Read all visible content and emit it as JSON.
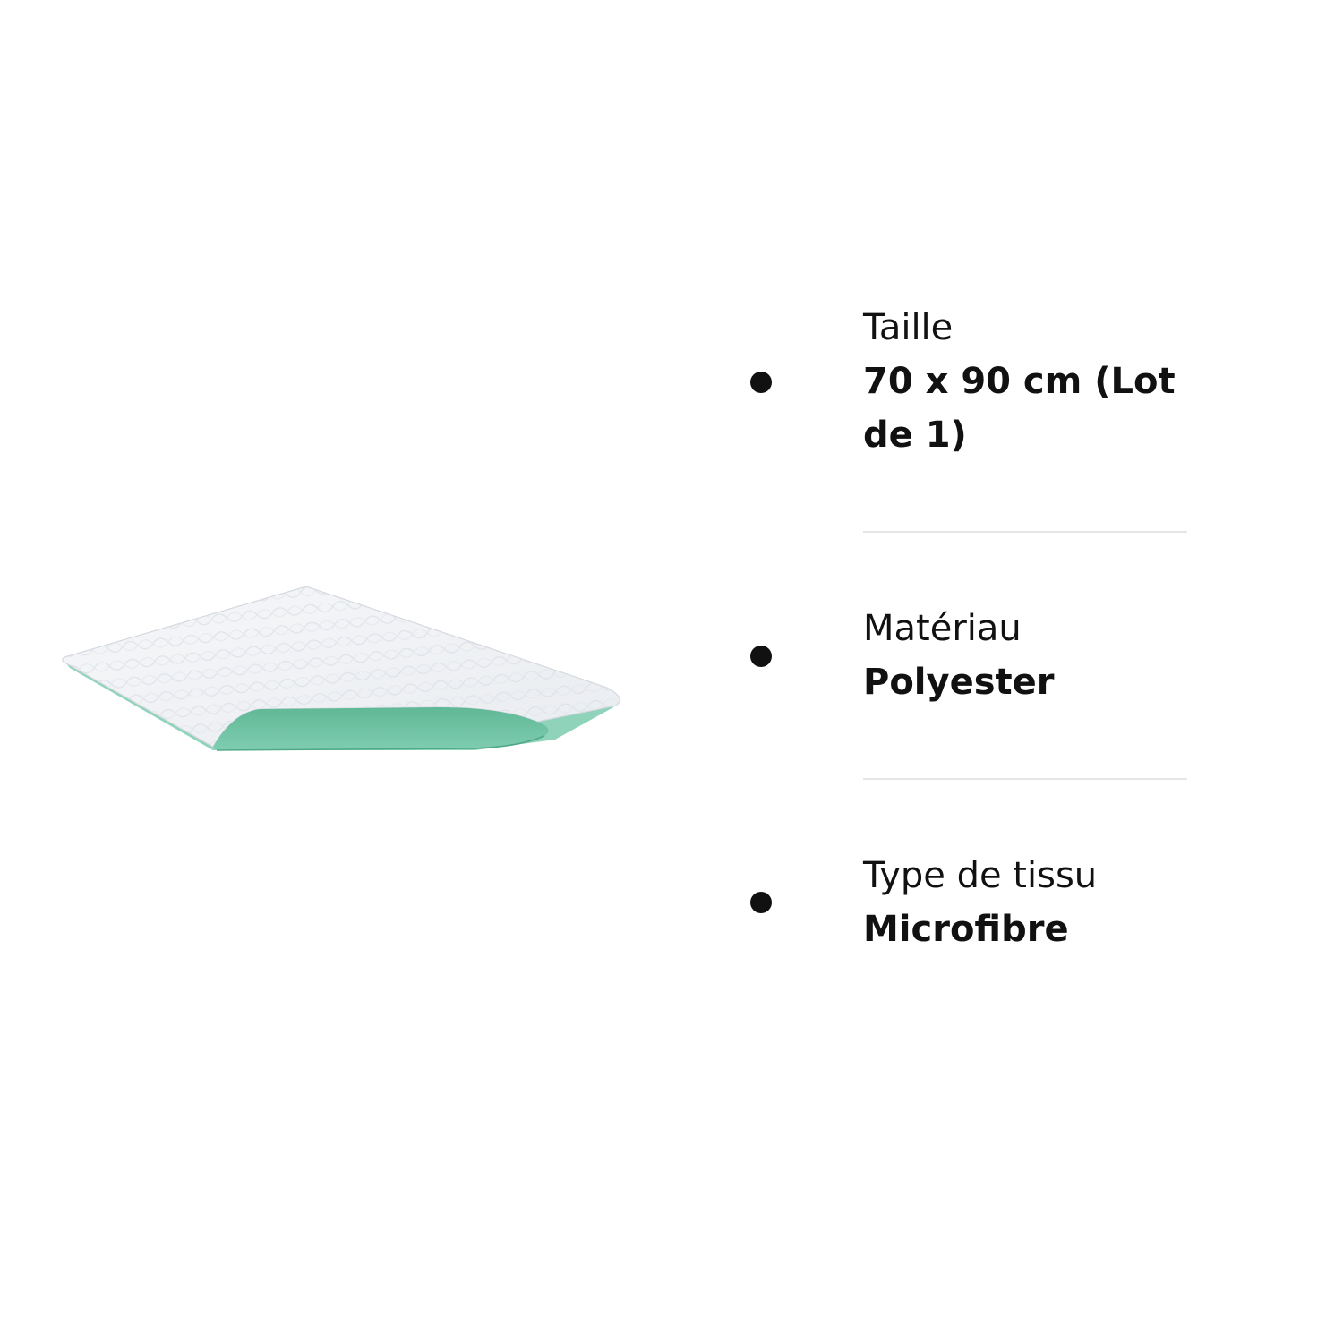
{
  "specs": [
    {
      "label": "Taille",
      "value": "70 x 90 cm (Lot de 1)"
    },
    {
      "label": "Matériau",
      "value": "Polyester"
    },
    {
      "label": "Type de tissu",
      "value": "Microfibre"
    }
  ],
  "colors": {
    "pad_top": "#eef0f4",
    "pad_underside": "#6cc3a2",
    "bullet": "#111111",
    "divider": "#e6e6e6"
  },
  "icons": {
    "bullet": "bullet-dot-icon",
    "product": "underpad-product-image"
  }
}
